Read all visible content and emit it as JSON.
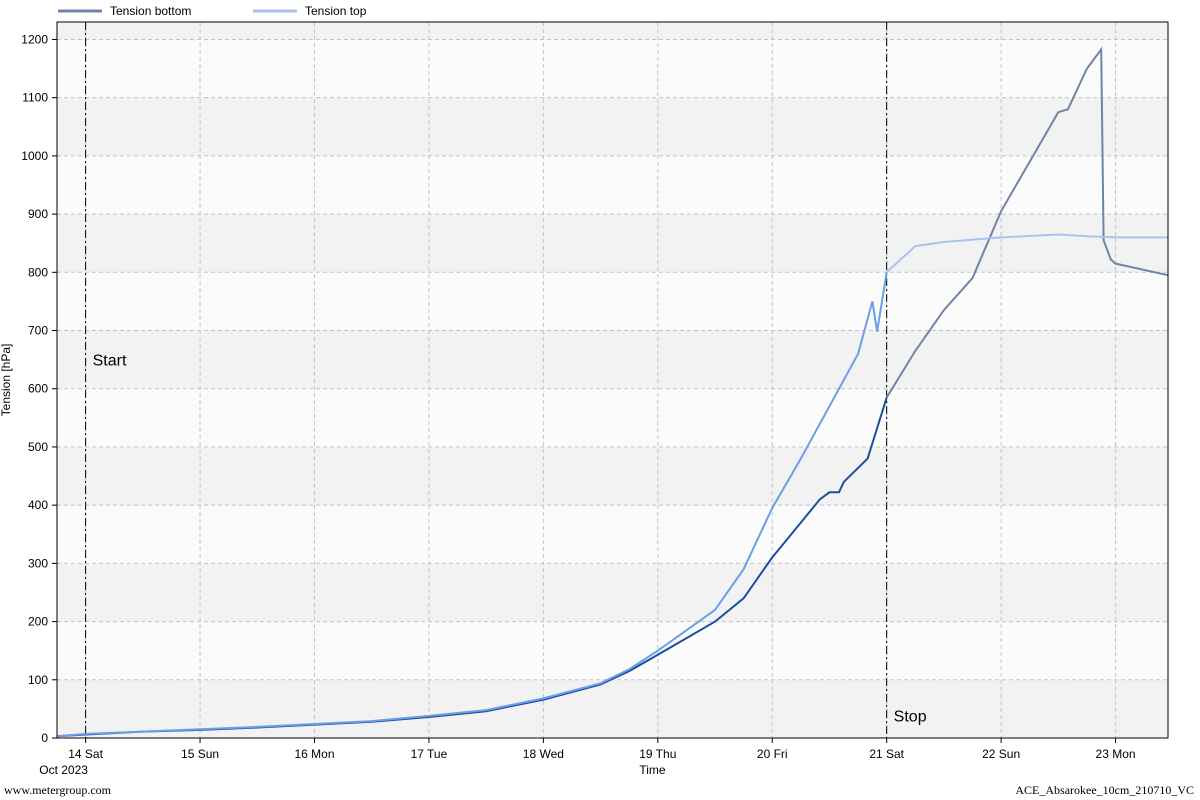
{
  "footer": {
    "left": "www.metergroup.com",
    "right": "ACE_Absarokee_10cm_210710_VC"
  },
  "chart_data": {
    "type": "line",
    "title": "",
    "xlabel": "Time",
    "ylabel": "Tension [hPa]",
    "x_start_label": "Oct 2023",
    "xlim": [
      "2023-10-13T18:00",
      "2023-10-23T11:00"
    ],
    "ylim": [
      0,
      1230
    ],
    "yticks": [
      0,
      100,
      200,
      300,
      400,
      500,
      600,
      700,
      800,
      900,
      1000,
      1100,
      1200
    ],
    "xticks": [
      {
        "t": "2023-10-14T00:00",
        "label": "14 Sat"
      },
      {
        "t": "2023-10-15T00:00",
        "label": "15 Sun"
      },
      {
        "t": "2023-10-16T00:00",
        "label": "16 Mon"
      },
      {
        "t": "2023-10-17T00:00",
        "label": "17 Tue"
      },
      {
        "t": "2023-10-18T00:00",
        "label": "18 Wed"
      },
      {
        "t": "2023-10-19T00:00",
        "label": "19 Thu"
      },
      {
        "t": "2023-10-20T00:00",
        "label": "20 Fri"
      },
      {
        "t": "2023-10-21T00:00",
        "label": "21 Sat"
      },
      {
        "t": "2023-10-22T00:00",
        "label": "22 Sun"
      },
      {
        "t": "2023-10-23T00:00",
        "label": "23 Mon"
      }
    ],
    "grid": true,
    "legend_position": "top-left",
    "markers": [
      {
        "label": "Start",
        "t": "2023-10-14T00:00"
      },
      {
        "label": "Stop",
        "t": "2023-10-21T00:00"
      }
    ],
    "series": [
      {
        "name": "Tension bottom",
        "color": "#1a4fa0",
        "color_outside": "#6f84a6",
        "points": [
          [
            "2023-10-13T18:00",
            3
          ],
          [
            "2023-10-14T00:00",
            6
          ],
          [
            "2023-10-14T12:00",
            11
          ],
          [
            "2023-10-15T00:00",
            14
          ],
          [
            "2023-10-15T12:00",
            18
          ],
          [
            "2023-10-16T00:00",
            23
          ],
          [
            "2023-10-16T12:00",
            28
          ],
          [
            "2023-10-17T00:00",
            36
          ],
          [
            "2023-10-17T12:00",
            46
          ],
          [
            "2023-10-18T00:00",
            66
          ],
          [
            "2023-10-18T12:00",
            92
          ],
          [
            "2023-10-18T18:00",
            115
          ],
          [
            "2023-10-19T00:00",
            143
          ],
          [
            "2023-10-19T12:00",
            200
          ],
          [
            "2023-10-19T18:00",
            240
          ],
          [
            "2023-10-20T00:00",
            310
          ],
          [
            "2023-10-20T06:00",
            370
          ],
          [
            "2023-10-20T10:00",
            410
          ],
          [
            "2023-10-20T12:00",
            422
          ],
          [
            "2023-10-20T14:00",
            422
          ],
          [
            "2023-10-20T15:00",
            440
          ],
          [
            "2023-10-20T20:00",
            480
          ],
          [
            "2023-10-21T00:00",
            585
          ],
          [
            "2023-10-21T06:00",
            665
          ],
          [
            "2023-10-21T12:00",
            735
          ],
          [
            "2023-10-21T18:00",
            790
          ],
          [
            "2023-10-22T00:00",
            905
          ],
          [
            "2023-10-22T06:00",
            990
          ],
          [
            "2023-10-22T12:00",
            1075
          ],
          [
            "2023-10-22T14:00",
            1080
          ],
          [
            "2023-10-22T18:00",
            1150
          ],
          [
            "2023-10-22T21:00",
            1183
          ],
          [
            "2023-10-22T21:30",
            855
          ],
          [
            "2023-10-22T23:00",
            822
          ],
          [
            "2023-10-23T00:00",
            815
          ],
          [
            "2023-10-23T11:00",
            795
          ]
        ]
      },
      {
        "name": "Tension top",
        "color": "#6c9ee6",
        "color_outside": "#a8c4ec",
        "points": [
          [
            "2023-10-13T18:00",
            3
          ],
          [
            "2023-10-14T00:00",
            7
          ],
          [
            "2023-10-14T12:00",
            11
          ],
          [
            "2023-10-15T00:00",
            15
          ],
          [
            "2023-10-15T12:00",
            19
          ],
          [
            "2023-10-16T00:00",
            24
          ],
          [
            "2023-10-16T12:00",
            29
          ],
          [
            "2023-10-17T00:00",
            38
          ],
          [
            "2023-10-17T12:00",
            48
          ],
          [
            "2023-10-18T00:00",
            68
          ],
          [
            "2023-10-18T12:00",
            94
          ],
          [
            "2023-10-18T18:00",
            118
          ],
          [
            "2023-10-19T00:00",
            150
          ],
          [
            "2023-10-19T12:00",
            220
          ],
          [
            "2023-10-19T18:00",
            290
          ],
          [
            "2023-10-20T00:00",
            395
          ],
          [
            "2023-10-20T06:00",
            480
          ],
          [
            "2023-10-20T12:00",
            570
          ],
          [
            "2023-10-20T18:00",
            660
          ],
          [
            "2023-10-20T21:00",
            750
          ],
          [
            "2023-10-20T22:00",
            698
          ],
          [
            "2023-10-21T00:00",
            800
          ],
          [
            "2023-10-21T06:00",
            845
          ],
          [
            "2023-10-21T12:00",
            852
          ],
          [
            "2023-10-22T00:00",
            860
          ],
          [
            "2023-10-22T12:00",
            865
          ],
          [
            "2023-10-22T18:00",
            862
          ],
          [
            "2023-10-23T00:00",
            860
          ],
          [
            "2023-10-23T11:00",
            860
          ]
        ]
      }
    ]
  }
}
